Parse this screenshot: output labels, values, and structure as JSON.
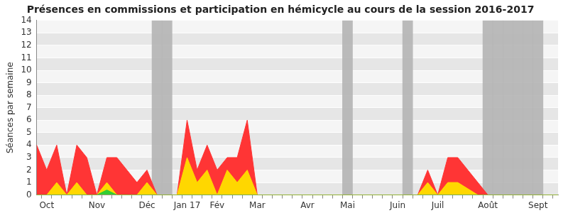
{
  "chart_data": {
    "type": "line",
    "title": "Présences en commissions et participation en hémicycle au cours de la session 2016-2017",
    "y_label": "Séances par semaine",
    "categories": [
      null,
      "Oct",
      null,
      null,
      null,
      null,
      "Nov",
      null,
      null,
      null,
      null,
      "Déc",
      null,
      null,
      null,
      "Jan 17",
      null,
      null,
      "Fév",
      null,
      null,
      null,
      "Mar",
      null,
      null,
      null,
      null,
      "Avr",
      null,
      null,
      null,
      "Mai",
      null,
      null,
      null,
      null,
      "Juin",
      null,
      null,
      null,
      "Juil",
      null,
      null,
      null,
      null,
      "Août",
      null,
      null,
      null,
      null,
      "Sept",
      null,
      null
    ],
    "series": [
      {
        "type": "bar",
        "color": "#b4b4b4",
        "values": [
          0,
          0,
          0,
          0,
          0,
          0,
          0,
          0,
          0,
          0,
          0,
          0,
          14,
          14,
          0,
          0,
          0,
          0,
          0,
          0,
          0,
          0,
          0,
          0,
          0,
          0,
          0,
          0,
          0,
          0,
          0,
          14,
          0,
          0,
          0,
          0,
          0,
          14,
          0,
          0,
          0,
          0,
          0,
          0,
          0,
          14,
          14,
          14,
          14,
          14,
          14,
          0,
          0
        ]
      },
      {
        "type": "area",
        "color": "#ff3535",
        "values": [
          4,
          2,
          4,
          0,
          4,
          3,
          0,
          3,
          3,
          2,
          1,
          2,
          0,
          0,
          0,
          6,
          2,
          4,
          2,
          3,
          3,
          6,
          0,
          0,
          0,
          0,
          0,
          0,
          0,
          0,
          0,
          0,
          0,
          0,
          0,
          0,
          0,
          0,
          0,
          2,
          0,
          3,
          3,
          2,
          1,
          0,
          0,
          0,
          0,
          0,
          0,
          0,
          0
        ]
      },
      {
        "type": "area",
        "color": "#ffd700",
        "values": [
          0,
          0,
          1,
          0,
          1,
          0,
          0,
          1,
          0,
          0,
          0,
          1,
          0,
          0,
          0,
          3,
          1,
          2,
          0,
          2,
          1,
          2,
          0,
          0,
          0,
          0,
          0,
          0,
          0,
          0,
          0,
          0,
          0,
          0,
          0,
          0,
          0,
          0,
          0,
          1,
          0,
          1,
          1,
          0.5,
          0,
          0,
          0,
          0,
          0,
          0,
          0,
          0,
          0
        ]
      },
      {
        "type": "area",
        "color": "#33cc33",
        "values": [
          0,
          0,
          0,
          0,
          0,
          0,
          0,
          0.4,
          0,
          0,
          0,
          0,
          0,
          0,
          0,
          0,
          0,
          0,
          0,
          0,
          0,
          0,
          0,
          0,
          0,
          0,
          0,
          0,
          0,
          0,
          0,
          0,
          0,
          0,
          0,
          0,
          0,
          0,
          0,
          0,
          0,
          0,
          0,
          0,
          0,
          0,
          0,
          0,
          0,
          0,
          0,
          0,
          0
        ]
      }
    ],
    "ylim": [
      0,
      14
    ],
    "yticks": [
      0,
      1,
      2,
      3,
      4,
      5,
      6,
      7,
      8,
      9,
      10,
      11,
      12,
      13,
      14
    ],
    "grid": true,
    "stacked": false
  }
}
